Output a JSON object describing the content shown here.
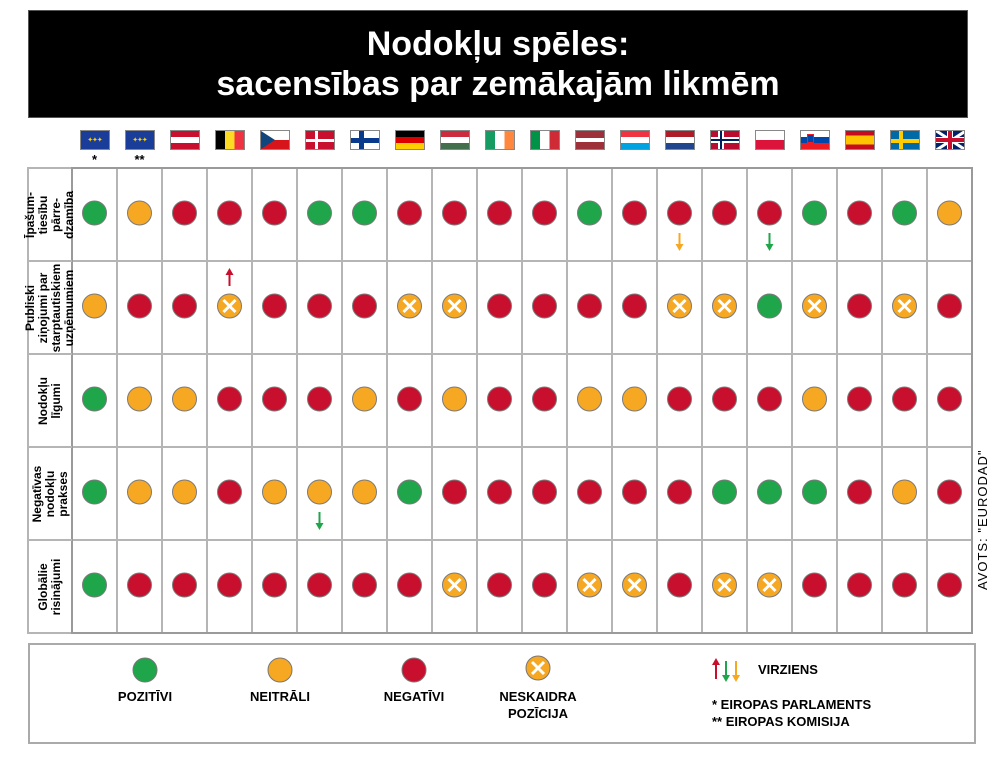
{
  "title": {
    "line1": "Nodokļu spēles:",
    "line2": "sacensības par zemākajām likmēm"
  },
  "colors": {
    "pozitivi": "#1fa64a",
    "neitrali": "#f7a823",
    "negativi": "#c8102e"
  },
  "columns": [
    {
      "flag": "eu-flag",
      "note": "*"
    },
    {
      "flag": "eu-flag",
      "note": "**"
    },
    {
      "flag": "austria-flag",
      "note": ""
    },
    {
      "flag": "belgium-flag",
      "note": ""
    },
    {
      "flag": "czech-flag",
      "note": ""
    },
    {
      "flag": "denmark-flag",
      "note": ""
    },
    {
      "flag": "finland-flag",
      "note": ""
    },
    {
      "flag": "germany-flag",
      "note": ""
    },
    {
      "flag": "hungary-flag",
      "note": ""
    },
    {
      "flag": "ireland-flag",
      "note": ""
    },
    {
      "flag": "italy-flag",
      "note": ""
    },
    {
      "flag": "latvia-flag",
      "note": ""
    },
    {
      "flag": "luxembourg-flag",
      "note": ""
    },
    {
      "flag": "netherlands-flag",
      "note": ""
    },
    {
      "flag": "norway-flag",
      "note": ""
    },
    {
      "flag": "poland-flag",
      "note": ""
    },
    {
      "flag": "slovenia-flag",
      "note": ""
    },
    {
      "flag": "spain-flag",
      "note": ""
    },
    {
      "flag": "sweden-flag",
      "note": ""
    },
    {
      "flag": "uk-flag",
      "note": ""
    }
  ],
  "chart_data": {
    "type": "table",
    "rows": [
      {
        "label": "Īpašum-\ntiesību\npārre-\ndzamība",
        "values": [
          "P",
          "N",
          "X",
          "X",
          "X",
          "P",
          "P",
          "X",
          "X",
          "X",
          "X",
          "P",
          "X",
          "X",
          "X",
          "X",
          "P",
          "X",
          "P",
          "N"
        ],
        "arrows": [
          {
            "col": 13,
            "dir": "down",
            "color": "N"
          },
          {
            "col": 15,
            "dir": "down",
            "color": "P"
          }
        ]
      },
      {
        "label": "Publiski\nziņojumi par\nstarptautiskiem\nuzņēmumiem",
        "values": [
          "N",
          "X",
          "X",
          "U",
          "X",
          "X",
          "X",
          "U",
          "U",
          "X",
          "X",
          "X",
          "X",
          "U",
          "U",
          "P",
          "U",
          "X",
          "U",
          "X"
        ],
        "arrows": [
          {
            "col": 3,
            "dir": "up",
            "color": "X"
          }
        ]
      },
      {
        "label": "Nodokļu\nlīgumi",
        "values": [
          "P",
          "N",
          "N",
          "X",
          "X",
          "X",
          "N",
          "X",
          "N",
          "X",
          "X",
          "N",
          "N",
          "X",
          "X",
          "X",
          "N",
          "X",
          "X",
          "X"
        ],
        "arrows": []
      },
      {
        "label": "Negatīvas\nnodokļu\nprakses",
        "values": [
          "P",
          "N",
          "N",
          "X",
          "N",
          "N",
          "N",
          "P",
          "X",
          "X",
          "X",
          "X",
          "X",
          "X",
          "P",
          "P",
          "P",
          "X",
          "N",
          "X"
        ],
        "arrows": [
          {
            "col": 5,
            "dir": "down",
            "color": "P"
          }
        ]
      },
      {
        "label": "Globālie\nrisinājumi",
        "values": [
          "P",
          "X",
          "X",
          "X",
          "X",
          "X",
          "X",
          "X",
          "U",
          "X",
          "X",
          "U",
          "U",
          "X",
          "U",
          "U",
          "X",
          "X",
          "X",
          "X"
        ],
        "arrows": []
      }
    ],
    "legend_codes": {
      "P": "POZITĪVI",
      "N": "NEITRĀLI",
      "X": "NEGATĪVI",
      "U": "NESKAIDRA POZĪCIJA"
    }
  },
  "legend": {
    "pozitivi": "POZITĪVI",
    "neitrali": "NEITRĀLI",
    "negativi": "NEGATĪVI",
    "neskaidra_1": "NESKAIDRA",
    "neskaidra_2": "POZĪCIJA",
    "virziens": "VIRZIENS",
    "note1": "* EIROPAS PARLAMENTS",
    "note2": "** EIROPAS KOMISIJA"
  },
  "source": "AVOTS: \"EURODAD\""
}
